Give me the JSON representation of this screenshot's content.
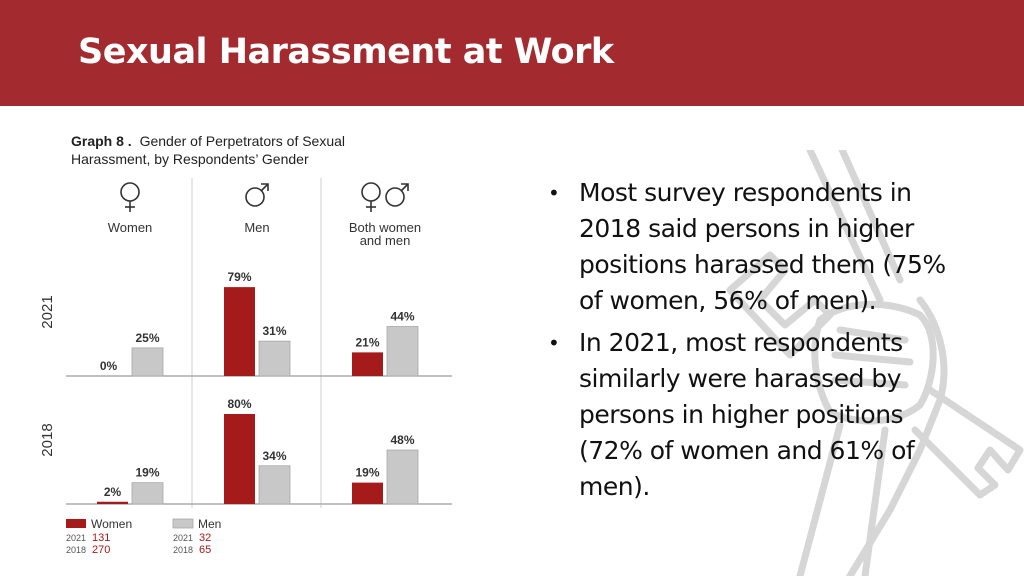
{
  "slide": {
    "title": "Sexual Harassment at Work",
    "bullets": [
      "Most survey respondents in 2018 said persons in higher positions harassed them (75% of women, 56% of men).",
      "In 2021, most respondents similarly were harassed by persons in higher positions (72% of women and 61% of men)."
    ],
    "colors": {
      "header": "#a32a2e",
      "women": "#a51a1a",
      "men": "#c8c8c8"
    }
  },
  "chart_data": {
    "type": "bar",
    "title_bold": "Graph 8 .",
    "title_rest_line1": "Gender of Perpetrators of Sexual",
    "title_line2": "Harassment, by Respondents’ Gender",
    "groups": [
      "Women",
      "Men",
      "Both women and men"
    ],
    "group_icons": [
      "female-symbol-icon",
      "male-symbol-icon",
      "female-male-symbols-icon"
    ],
    "panels": [
      {
        "label": "2021",
        "women": [
          0,
          79,
          21
        ],
        "men": [
          25,
          31,
          44
        ]
      },
      {
        "label": "2018",
        "women": [
          2,
          80,
          19
        ],
        "men": [
          19,
          34,
          48
        ]
      }
    ],
    "value_suffix": "%",
    "legend": {
      "placement": "bottom-left",
      "women": {
        "label": "Women",
        "counts": [
          [
            "2021",
            "131"
          ],
          [
            "2018",
            "270"
          ]
        ]
      },
      "men": {
        "label": "Men",
        "counts": [
          [
            "2021",
            "32"
          ],
          [
            "2018",
            "65"
          ]
        ]
      }
    }
  }
}
